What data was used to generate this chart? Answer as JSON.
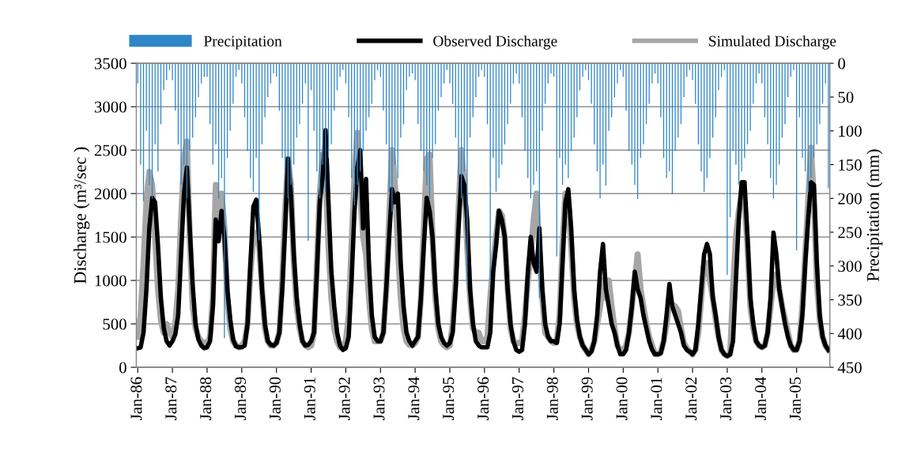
{
  "chart_data": {
    "type": "line",
    "categories": [
      "Jan-86",
      null,
      null,
      null,
      null,
      null,
      null,
      null,
      null,
      null,
      null,
      null,
      "Jan-87",
      null,
      null,
      null,
      null,
      null,
      null,
      null,
      null,
      null,
      null,
      null,
      "Jan-88",
      null,
      null,
      null,
      null,
      null,
      null,
      null,
      null,
      null,
      null,
      null,
      "Jan-89",
      null,
      null,
      null,
      null,
      null,
      null,
      null,
      null,
      null,
      null,
      null,
      "Jan-90",
      null,
      null,
      null,
      null,
      null,
      null,
      null,
      null,
      null,
      null,
      null,
      "Jan-91",
      null,
      null,
      null,
      null,
      null,
      null,
      null,
      null,
      null,
      null,
      null,
      "Jan-92",
      null,
      null,
      null,
      null,
      null,
      null,
      null,
      null,
      null,
      null,
      null,
      "Jan-93",
      null,
      null,
      null,
      null,
      null,
      null,
      null,
      null,
      null,
      null,
      null,
      "Jan-94",
      null,
      null,
      null,
      null,
      null,
      null,
      null,
      null,
      null,
      null,
      null,
      "Jan-95",
      null,
      null,
      null,
      null,
      null,
      null,
      null,
      null,
      null,
      null,
      null,
      "Jan-96",
      null,
      null,
      null,
      null,
      null,
      null,
      null,
      null,
      null,
      null,
      null,
      "Jan-97",
      null,
      null,
      null,
      null,
      null,
      null,
      null,
      null,
      null,
      null,
      null,
      "Jan-98",
      null,
      null,
      null,
      null,
      null,
      null,
      null,
      null,
      null,
      null,
      null,
      "Jan-99",
      null,
      null,
      null,
      null,
      null,
      null,
      null,
      null,
      null,
      null,
      null,
      "Jan-00",
      null,
      null,
      null,
      null,
      null,
      null,
      null,
      null,
      null,
      null,
      null,
      "Jan-01",
      null,
      null,
      null,
      null,
      null,
      null,
      null,
      null,
      null,
      null,
      null,
      "Jan-02",
      null,
      null,
      null,
      null,
      null,
      null,
      null,
      null,
      null,
      null,
      null,
      "Jan-03",
      null,
      null,
      null,
      null,
      null,
      null,
      null,
      null,
      null,
      null,
      null,
      "Jan-04",
      null,
      null,
      null,
      null,
      null,
      null,
      null,
      null,
      null,
      null,
      null,
      "Jan-05",
      null,
      null,
      null,
      null,
      null,
      null,
      null,
      null,
      null,
      null,
      null
    ],
    "ylabel": "Discharge (m³/sec )",
    "y2label": "Precipitation (mm)",
    "ylim": [
      0,
      3500
    ],
    "yticks": [
      0,
      500,
      1000,
      1500,
      2000,
      2500,
      3000,
      3500
    ],
    "y2lim": [
      450,
      0
    ],
    "y2ticks": [
      0,
      50,
      100,
      150,
      200,
      250,
      300,
      350,
      400,
      450
    ],
    "grid": "y",
    "legend": "top",
    "series": [
      {
        "name": "Precipitation",
        "type": "bar",
        "axis": "y2",
        "color": "#2e86c8",
        "values": [
          30,
          150,
          204,
          100,
          180,
          200,
          120,
          160,
          90,
          40,
          25,
          10,
          25,
          70,
          120,
          180,
          150,
          200,
          130,
          110,
          80,
          50,
          30,
          20,
          20,
          90,
          150,
          120,
          200,
          170,
          407,
          140,
          100,
          60,
          20,
          10,
          30,
          80,
          130,
          170,
          190,
          140,
          262,
          120,
          80,
          50,
          30,
          15,
          20,
          70,
          140,
          160,
          200,
          180,
          150,
          110,
          90,
          60,
          30,
          263,
          40,
          100,
          160,
          200,
          150,
          190,
          140,
          120,
          70,
          40,
          20,
          10,
          30,
          80,
          170,
          210,
          180,
          160,
          130,
          100,
          80,
          60,
          25,
          10,
          20,
          70,
          120,
          190,
          220,
          150,
          170,
          110,
          90,
          40,
          20,
          15,
          25,
          90,
          130,
          160,
          180,
          200,
          140,
          120,
          70,
          50,
          30,
          10,
          30,
          60,
          110,
          170,
          200,
          160,
          327,
          110,
          80,
          50,
          20,
          10,
          20,
          90,
          325,
          140,
          190,
          170,
          150,
          120,
          90,
          60,
          30,
          15,
          30,
          80,
          130,
          170,
          200,
          180,
          160,
          348,
          100,
          60,
          30,
          15,
          20,
          286,
          140,
          180,
          150,
          170,
          130,
          110,
          80,
          40,
          20,
          10,
          25,
          60,
          120,
          160,
          200,
          150,
          181,
          100,
          80,
          50,
          30,
          10,
          20,
          70,
          130,
          150,
          180,
          201,
          140,
          120,
          90,
          60,
          30,
          15,
          30,
          80,
          140,
          170,
          160,
          194,
          130,
          110,
          90,
          50,
          20,
          10,
          25,
          60,
          120,
          160,
          190,
          170,
          140,
          110,
          80,
          40,
          20,
          10,
          313,
          228,
          130,
          150,
          180,
          160,
          140,
          120,
          100,
          60,
          30,
          15,
          30,
          80,
          120,
          170,
          200,
          180,
          150,
          110,
          90,
          50,
          20,
          10,
          277,
          80,
          140,
          160,
          190,
          170,
          140,
          120,
          90,
          60,
          30,
          185
        ]
      },
      {
        "name": "Observed Discharge",
        "color": "#000000",
        "values": [
          220,
          230,
          400,
          900,
          1600,
          1950,
          1900,
          1400,
          800,
          450,
          300,
          250,
          300,
          380,
          600,
          1300,
          2000,
          2300,
          1600,
          950,
          500,
          320,
          250,
          220,
          230,
          300,
          700,
          1700,
          1450,
          1800,
          1500,
          900,
          550,
          320,
          240,
          230,
          230,
          250,
          500,
          1200,
          1850,
          1930,
          1500,
          900,
          500,
          300,
          260,
          250,
          280,
          400,
          900,
          1600,
          2400,
          2000,
          1300,
          800,
          500,
          300,
          250,
          260,
          300,
          400,
          1100,
          1900,
          2200,
          2730,
          1900,
          1100,
          700,
          400,
          250,
          200,
          220,
          350,
          1000,
          1800,
          2300,
          2500,
          1600,
          2170,
          1200,
          600,
          350,
          300,
          300,
          400,
          900,
          1500,
          2050,
          1900,
          2000,
          1200,
          700,
          400,
          300,
          250,
          300,
          350,
          800,
          1400,
          1950,
          1800,
          1500,
          900,
          500,
          350,
          280,
          250,
          280,
          400,
          900,
          1600,
          2200,
          2100,
          1700,
          900,
          500,
          300,
          250,
          230,
          230,
          230,
          400,
          1100,
          1400,
          1800,
          1700,
          1500,
          900,
          500,
          300,
          200,
          180,
          200,
          500,
          1100,
          1500,
          1200,
          1100,
          1600,
          900,
          500,
          350,
          300,
          300,
          280,
          500,
          1200,
          1900,
          2050,
          1600,
          900,
          550,
          350,
          250,
          200,
          150,
          180,
          300,
          600,
          1100,
          1420,
          900,
          700,
          500,
          400,
          250,
          150,
          150,
          200,
          400,
          700,
          1100,
          900,
          800,
          600,
          450,
          300,
          200,
          150,
          150,
          160,
          300,
          600,
          960,
          700,
          600,
          500,
          400,
          250,
          200,
          180,
          150,
          200,
          500,
          900,
          1300,
          1420,
          1300,
          800,
          600,
          350,
          200,
          150,
          130,
          150,
          300,
          1000,
          1700,
          2130,
          2130,
          1500,
          800,
          500,
          300,
          250,
          230,
          250,
          400,
          800,
          1550,
          1300,
          900,
          700,
          500,
          350,
          250,
          200,
          200,
          300,
          600,
          1200,
          1700,
          2130,
          2100,
          1200,
          600,
          350,
          250,
          200
        ]
      },
      {
        "name": "Simulated Discharge",
        "color": "#a6a6a6",
        "values": [
          350,
          600,
          1200,
          1900,
          2250,
          2100,
          1500,
          900,
          550,
          400,
          500,
          400,
          350,
          500,
          900,
          1700,
          2400,
          2600,
          1500,
          700,
          450,
          350,
          300,
          280,
          280,
          350,
          800,
          2100,
          1550,
          2000,
          1600,
          800,
          450,
          300,
          250,
          230,
          250,
          300,
          500,
          1100,
          1500,
          1550,
          1400,
          900,
          450,
          300,
          250,
          250,
          280,
          400,
          1000,
          1800,
          2400,
          2100,
          1200,
          700,
          450,
          300,
          250,
          230,
          250,
          400,
          1200,
          2000,
          2450,
          2200,
          1400,
          800,
          450,
          300,
          230,
          250,
          300,
          600,
          1400,
          2200,
          2700,
          2000,
          1500,
          1300,
          800,
          450,
          300,
          300,
          300,
          400,
          900,
          1700,
          2500,
          2100,
          1400,
          800,
          450,
          300,
          260,
          250,
          280,
          350,
          800,
          1600,
          2400,
          2450,
          1500,
          800,
          450,
          300,
          250,
          230,
          250,
          500,
          1000,
          1800,
          2500,
          2100,
          1400,
          800,
          450,
          400,
          400,
          300,
          300,
          350,
          800,
          1200,
          1500,
          1800,
          1750,
          1500,
          900,
          450,
          300,
          280,
          280,
          300,
          600,
          1000,
          1300,
          1700,
          2000,
          1300,
          800,
          400,
          350,
          300,
          280,
          300,
          600,
          1400,
          2000,
          1900,
          1400,
          800,
          500,
          350,
          250,
          200,
          150,
          200,
          300,
          500,
          700,
          1000,
          800,
          1000,
          700,
          450,
          250,
          200,
          200,
          250,
          400,
          700,
          1000,
          1300,
          900,
          700,
          500,
          350,
          250,
          150,
          150,
          180,
          300,
          500,
          750,
          720,
          700,
          650,
          450,
          280,
          220,
          180,
          150,
          200,
          400,
          800,
          1200,
          1200,
          1000,
          800,
          550,
          350,
          200,
          150,
          130,
          150,
          900,
          1500,
          1800,
          2000,
          1900,
          1400,
          700,
          450,
          300,
          250,
          230,
          250,
          400,
          700,
          1000,
          1070,
          900,
          700,
          550,
          400,
          250,
          200,
          200,
          300,
          700,
          1300,
          1900,
          2530,
          1900,
          1000,
          550,
          350,
          250,
          200
        ]
      }
    ]
  }
}
